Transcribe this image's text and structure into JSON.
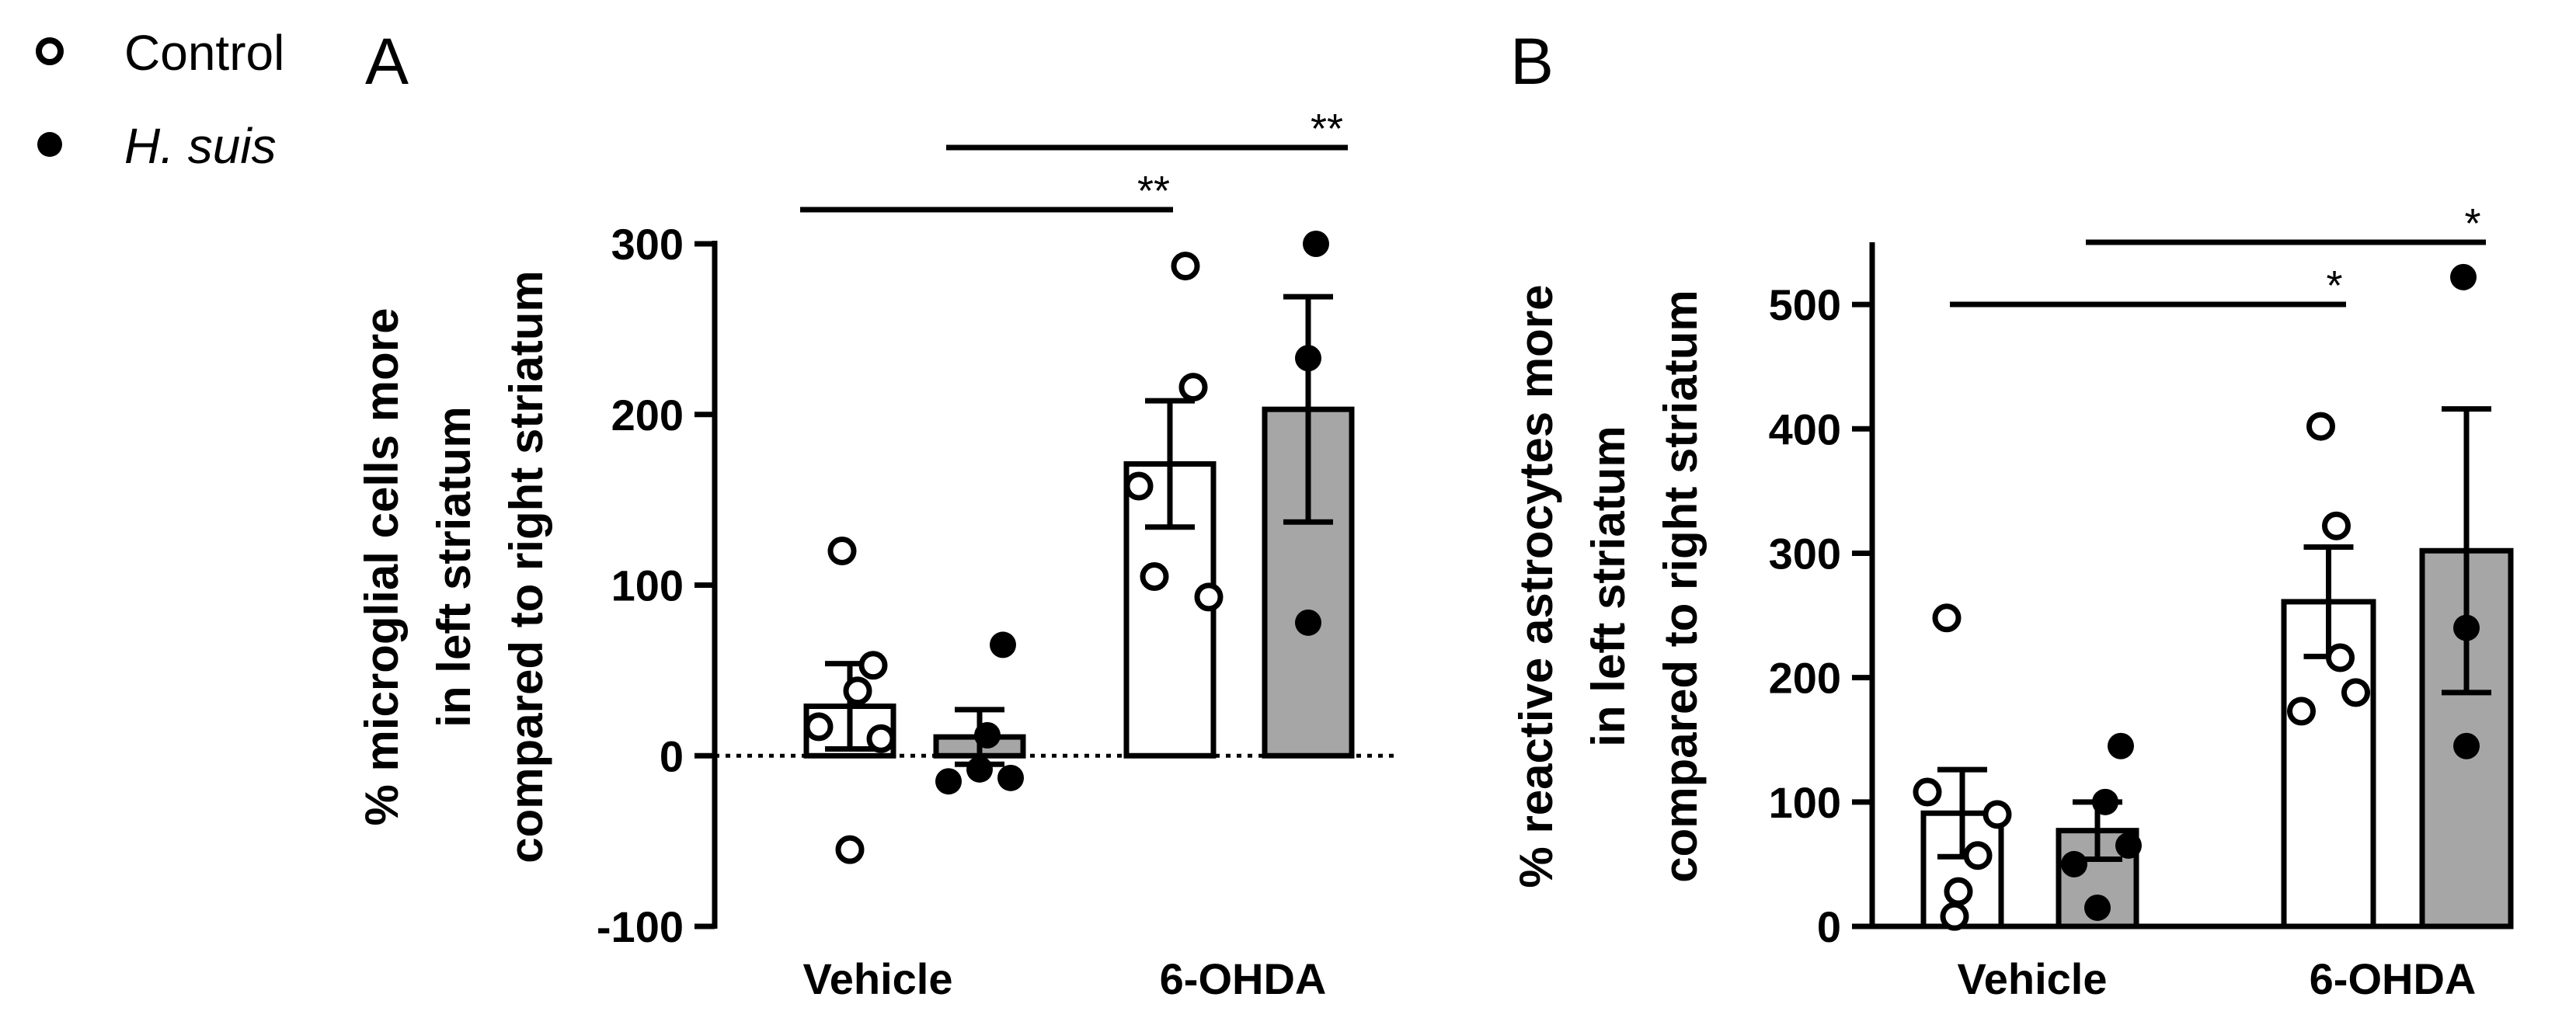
{
  "legend": [
    {
      "label": "Control",
      "marker": "open-circle"
    },
    {
      "label": "H. suis",
      "marker": "filled-circle",
      "italic": true
    }
  ],
  "colors": {
    "control_bar": "#ffffff",
    "hsuis_bar": "#a6a6a6",
    "ink": "#000000"
  },
  "chart_data": [
    {
      "panel": "A",
      "type": "bar",
      "categories": [
        "Vehicle",
        "6-OHDA"
      ],
      "ylabel": [
        "% microglial cells more",
        "in left striatum",
        "compared to right striatum"
      ],
      "ylim": [
        -100,
        300
      ],
      "yticks": [
        "300",
        "200",
        "100",
        "0",
        "-100"
      ],
      "ytick_values": [
        300,
        200,
        100,
        0,
        -100
      ],
      "zero_line": "dotted",
      "series": [
        {
          "name": "Control",
          "means": [
            29,
            171
          ],
          "sem": [
            25,
            37
          ],
          "points": [
            [
              120,
              53,
              38,
              17,
              10,
              -55
            ],
            [
              287,
              216,
              158,
              105,
              93
            ]
          ]
        },
        {
          "name": "H. suis",
          "means": [
            11,
            203
          ],
          "sem": [
            16,
            66
          ],
          "points": [
            [
              65,
              12,
              -8,
              -13,
              -15
            ],
            [
              300,
              233,
              78
            ]
          ]
        }
      ],
      "significance": [
        {
          "label": "**",
          "from": "Vehicle-Control",
          "to": "6-OHDA-Control"
        },
        {
          "label": "**",
          "from": "Vehicle-H. suis",
          "to": "6-OHDA-H. suis"
        }
      ]
    },
    {
      "panel": "B",
      "type": "bar",
      "categories": [
        "Vehicle",
        "6-OHDA"
      ],
      "ylabel": [
        "% reactive astrocytes more",
        "in left striatum",
        "compared to right striatum"
      ],
      "ylim": [
        0,
        550
      ],
      "yticks": [
        "500",
        "400",
        "300",
        "200",
        "100",
        "0"
      ],
      "ytick_values": [
        500,
        400,
        300,
        200,
        100,
        0
      ],
      "series": [
        {
          "name": "Control",
          "means": [
            91,
            261
          ],
          "sem": [
            35,
            44
          ],
          "points": [
            [
              248,
              108,
              90,
              57,
              28,
              8
            ],
            [
              402,
              322,
              216,
              188,
              173
            ]
          ]
        },
        {
          "name": "H. suis",
          "means": [
            77,
            302
          ],
          "sem": [
            23,
            114
          ],
          "points": [
            [
              145,
              100,
              65,
              50,
              15
            ],
            [
              522,
              240,
              145
            ]
          ]
        }
      ],
      "significance": [
        {
          "label": "*",
          "from": "Vehicle-Control",
          "to": "6-OHDA-Control"
        },
        {
          "label": "*",
          "from": "Vehicle-H. suis",
          "to": "6-OHDA-H. suis"
        }
      ]
    }
  ]
}
